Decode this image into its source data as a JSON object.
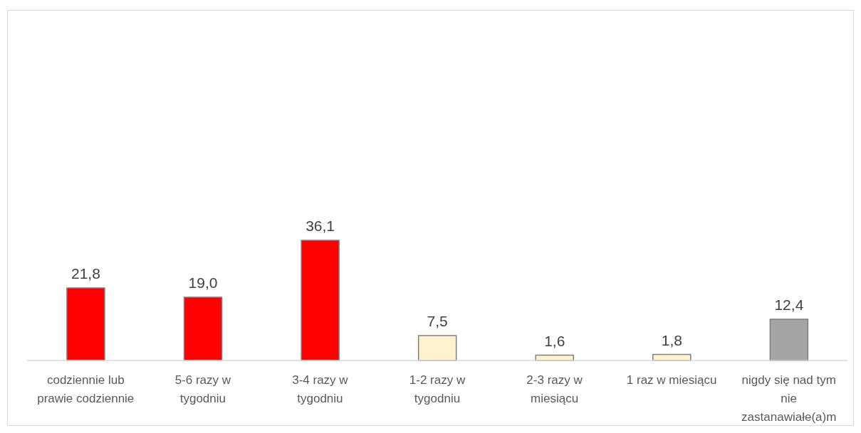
{
  "chart_data": {
    "type": "bar",
    "categories": [
      "codziennie lub prawie codziennie",
      "5-6 razy w tygodniu",
      "3-4 razy w tygodniu",
      "1-2 razy w tygodniu",
      "2-3 razy w miesiącu",
      "1 raz w miesiącu",
      "nigdy się nad tym nie zastanawiałe(a)m"
    ],
    "values": [
      21.8,
      19.0,
      36.1,
      7.5,
      1.6,
      1.8,
      12.4
    ],
    "value_labels": [
      "21,8",
      "19,0",
      "36,1",
      "7,5",
      "1,6",
      "1,8",
      "12,4"
    ],
    "colors": [
      "#ff0000",
      "#ff0000",
      "#ff0000",
      "#fff2cc",
      "#fff2cc",
      "#fff2cc",
      "#a5a5a5"
    ],
    "tick_labels": "x"
  }
}
